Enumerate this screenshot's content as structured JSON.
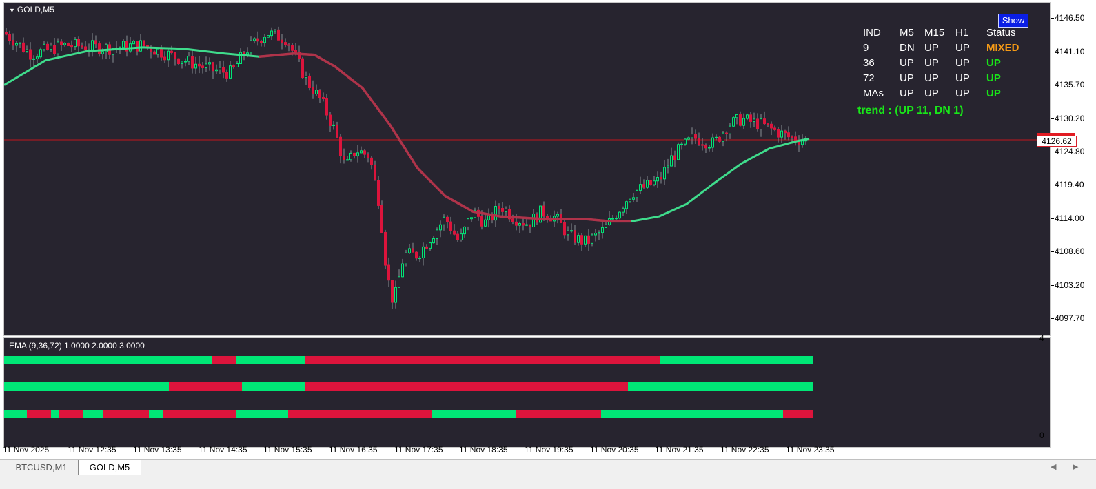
{
  "chart": {
    "title": "GOLD,M5",
    "show_button": "Show",
    "current_price": "4126.62"
  },
  "price_axis": {
    "labels": [
      "4146.50",
      "4141.10",
      "4135.70",
      "4130.20",
      "4124.80",
      "4119.40",
      "4114.00",
      "4108.60",
      "4103.20",
      "4097.70"
    ]
  },
  "mtf_table": {
    "headers": [
      "IND",
      "M5",
      "M15",
      "H1",
      "Status"
    ],
    "rows": [
      [
        "9",
        "DN",
        "UP",
        "UP",
        "MIXED"
      ],
      [
        "36",
        "UP",
        "UP",
        "UP",
        "UP"
      ],
      [
        "72",
        "UP",
        "UP",
        "UP",
        "UP"
      ],
      [
        "MAs",
        "UP",
        "UP",
        "UP",
        "UP"
      ]
    ],
    "status_colors": [
      "#f59a16",
      "#19e619",
      "#19e619",
      "#19e619"
    ],
    "trend": "trend : (UP 11, DN 1)"
  },
  "indicator": {
    "label": "EMA (9,36,72) 1.0000 2.0000 3.0000",
    "axis_top": "4",
    "axis_bottom": "0",
    "up_color": "#00e676",
    "down_color": "#dc143c",
    "bars": [
      [
        [
          "up",
          0,
          302
        ],
        [
          "dn",
          302,
          337
        ],
        [
          "up",
          337,
          436
        ],
        [
          "dn",
          436,
          952
        ],
        [
          "up",
          952,
          1174
        ]
      ],
      [
        [
          "up",
          0,
          239
        ],
        [
          "dn",
          239,
          345
        ],
        [
          "up",
          345,
          436
        ],
        [
          "dn",
          436,
          905
        ],
        [
          "up",
          905,
          1174
        ]
      ],
      [
        [
          "up",
          0,
          33
        ],
        [
          "dn",
          33,
          68
        ],
        [
          "up",
          68,
          80
        ],
        [
          "dn",
          80,
          115
        ],
        [
          "up",
          115,
          143
        ],
        [
          "dn",
          143,
          210
        ],
        [
          "up",
          210,
          230
        ],
        [
          "dn",
          230,
          337
        ],
        [
          "up",
          337,
          412
        ],
        [
          "dn",
          412,
          621
        ],
        [
          "up",
          621,
          743
        ],
        [
          "dn",
          743,
          866
        ],
        [
          "up",
          866,
          1130
        ],
        [
          "dn",
          1130,
          1174
        ]
      ]
    ]
  },
  "time_axis": {
    "labels": [
      "11 Nov 2025",
      "11 Nov 12:35",
      "11 Nov 13:35",
      "11 Nov 14:35",
      "11 Nov 15:35",
      "11 Nov 16:35",
      "11 Nov 17:35",
      "11 Nov 18:35",
      "11 Nov 19:35",
      "11 Nov 20:35",
      "11 Nov 21:35",
      "11 Nov 22:35",
      "11 Nov 23:35"
    ]
  },
  "tabs": [
    {
      "label": "BTCUSD,M1",
      "active": false
    },
    {
      "label": "GOLD,M5",
      "active": true
    }
  ],
  "colors": {
    "background": "#27242f",
    "bull": "#00e676",
    "bear": "#dc143c",
    "ema_up": "#3fdc8c",
    "ema_down": "#b0334a",
    "price_line": "#c0161e"
  }
}
